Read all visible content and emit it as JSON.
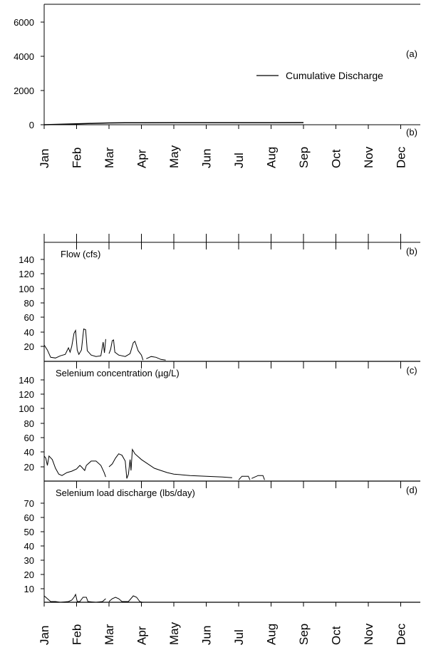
{
  "chart_data": [
    {
      "type": "line",
      "panel_label": "(a)",
      "corner_label": "(b)",
      "legend": "top-right",
      "x_ticks": [
        "Jan",
        "Feb",
        "Mar",
        "Apr",
        "May",
        "Jun",
        "Jul",
        "Aug",
        "Sep",
        "Oct",
        "Nov",
        "Dec"
      ],
      "y_ticks": [
        "0",
        "2000",
        "4000",
        "6000"
      ],
      "ylim": [
        0,
        7000
      ],
      "series": [
        {
          "name": "Cumulative Discharge",
          "color": "#000000",
          "points": [
            [
              0,
              0
            ],
            [
              0.5,
              25
            ],
            [
              1,
              50
            ],
            [
              1.5,
              80
            ],
            [
              2,
              105
            ],
            [
              2.5,
              115
            ],
            [
              3,
              118
            ],
            [
              4,
              120
            ],
            [
              5,
              121
            ],
            [
              6,
              122
            ],
            [
              7,
              122
            ],
            [
              8,
              123
            ]
          ]
        }
      ]
    },
    {
      "type": "line",
      "label": "Flow (cfs)",
      "panel_label": "(b)",
      "y_ticks": [
        "20",
        "40",
        "60",
        "80",
        "100",
        "120",
        "140"
      ],
      "ylim": [
        0,
        150
      ],
      "series": [
        {
          "color": "#000000",
          "segments": [
            [
              [
                0,
                22
              ],
              [
                0.1,
                15
              ],
              [
                0.2,
                5
              ],
              [
                0.35,
                4
              ],
              [
                0.5,
                7
              ],
              [
                0.65,
                9
              ],
              [
                0.75,
                18
              ],
              [
                0.8,
                12
              ],
              [
                0.85,
                20
              ],
              [
                0.92,
                38
              ],
              [
                0.97,
                42
              ],
              [
                1.02,
                15
              ],
              [
                1.07,
                9
              ],
              [
                1.15,
                15
              ],
              [
                1.22,
                44
              ],
              [
                1.28,
                43
              ],
              [
                1.33,
                14
              ],
              [
                1.45,
                8
              ],
              [
                1.6,
                6
              ],
              [
                1.75,
                7
              ],
              [
                1.82,
                26
              ],
              [
                1.86,
                11
              ],
              [
                1.9,
                30
              ]
            ],
            [
              [
                2.0,
                10
              ],
              [
                2.05,
                16
              ],
              [
                2.1,
                28
              ],
              [
                2.14,
                29
              ],
              [
                2.18,
                12
              ],
              [
                2.3,
                8
              ],
              [
                2.5,
                6
              ],
              [
                2.65,
                10
              ],
              [
                2.75,
                25
              ],
              [
                2.8,
                27
              ],
              [
                2.9,
                14
              ],
              [
                3.0,
                8
              ],
              [
                3.05,
                1
              ]
            ],
            [
              [
                3.15,
                3
              ],
              [
                3.3,
                6
              ],
              [
                3.45,
                5
              ],
              [
                3.6,
                2
              ],
              [
                3.75,
                1
              ]
            ]
          ]
        }
      ]
    },
    {
      "type": "line",
      "label": "Selenium concentration (µg/L)",
      "panel_label": "(c)",
      "y_ticks": [
        "20",
        "40",
        "60",
        "80",
        "100",
        "120",
        "140"
      ],
      "ylim": [
        0,
        150
      ],
      "series": [
        {
          "color": "#000000",
          "segments": [
            [
              [
                0,
                35
              ],
              [
                0.05,
                32
              ],
              [
                0.1,
                22
              ],
              [
                0.15,
                35
              ],
              [
                0.25,
                30
              ],
              [
                0.35,
                18
              ],
              [
                0.45,
                10
              ],
              [
                0.55,
                8
              ],
              [
                0.7,
                12
              ],
              [
                0.85,
                14
              ],
              [
                1.0,
                17
              ],
              [
                1.1,
                22
              ],
              [
                1.15,
                20
              ],
              [
                1.25,
                15
              ],
              [
                1.3,
                22
              ],
              [
                1.45,
                28
              ],
              [
                1.6,
                28
              ],
              [
                1.75,
                22
              ],
              [
                1.85,
                12
              ],
              [
                1.9,
                6
              ]
            ],
            [
              [
                2.0,
                20
              ],
              [
                2.1,
                24
              ],
              [
                2.2,
                32
              ],
              [
                2.3,
                38
              ],
              [
                2.4,
                36
              ],
              [
                2.5,
                28
              ],
              [
                2.55,
                4
              ],
              [
                2.6,
                10
              ],
              [
                2.65,
                30
              ],
              [
                2.68,
                15
              ],
              [
                2.72,
                44
              ],
              [
                2.8,
                38
              ],
              [
                3.0,
                30
              ],
              [
                3.2,
                24
              ],
              [
                3.4,
                18
              ],
              [
                3.6,
                15
              ],
              [
                3.8,
                12
              ],
              [
                4.0,
                10
              ],
              [
                4.5,
                8
              ],
              [
                5.0,
                7
              ],
              [
                5.5,
                6
              ],
              [
                5.8,
                5
              ]
            ],
            [
              [
                6.0,
                2
              ],
              [
                6.1,
                7
              ],
              [
                6.3,
                7
              ],
              [
                6.35,
                2
              ]
            ],
            [
              [
                6.4,
                4
              ],
              [
                6.6,
                8
              ],
              [
                6.75,
                8
              ],
              [
                6.8,
                2
              ]
            ]
          ]
        }
      ]
    },
    {
      "type": "line",
      "label": "Selenium load discharge (lbs/day)",
      "panel_label": "(d)",
      "y_ticks": [
        "10",
        "20",
        "30",
        "40",
        "50",
        "60",
        "70"
      ],
      "ylim": [
        0,
        75
      ],
      "x_ticks": [
        "Jan",
        "Feb",
        "Mar",
        "Apr",
        "May",
        "Jun",
        "Jul",
        "Aug",
        "Sep",
        "Oct",
        "Nov",
        "Dec"
      ],
      "series": [
        {
          "color": "#000000",
          "segments": [
            [
              [
                0,
                5
              ],
              [
                0.1,
                3
              ],
              [
                0.2,
                1
              ],
              [
                0.35,
                1
              ],
              [
                0.5,
                0.5
              ],
              [
                0.75,
                1
              ],
              [
                0.85,
                2
              ],
              [
                0.92,
                4
              ],
              [
                0.97,
                6
              ],
              [
                1.02,
                1
              ],
              [
                1.1,
                1
              ],
              [
                1.2,
                4
              ],
              [
                1.3,
                4
              ],
              [
                1.35,
                1
              ],
              [
                1.6,
                0.5
              ],
              [
                1.8,
                1
              ],
              [
                1.9,
                3
              ]
            ],
            [
              [
                2.0,
                1
              ],
              [
                2.1,
                3
              ],
              [
                2.2,
                4
              ],
              [
                2.3,
                3
              ],
              [
                2.4,
                1
              ],
              [
                2.6,
                1
              ],
              [
                2.75,
                5
              ],
              [
                2.85,
                4
              ],
              [
                2.95,
                1
              ],
              [
                3.05,
                0.3
              ]
            ]
          ]
        }
      ]
    }
  ]
}
